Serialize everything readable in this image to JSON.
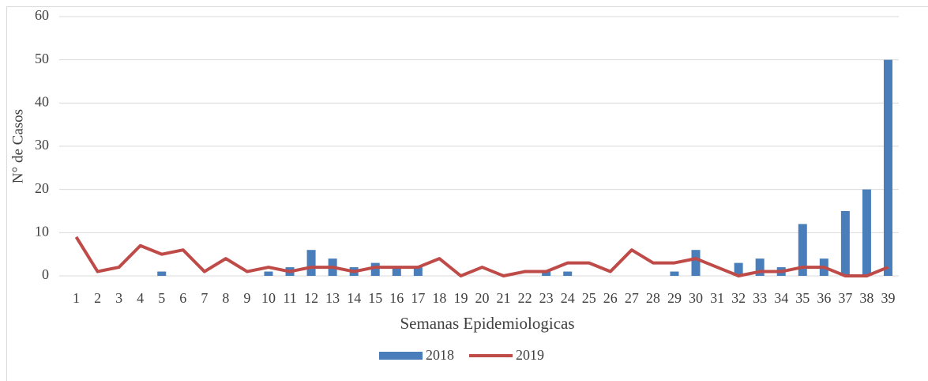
{
  "chart_data": {
    "type": "combo",
    "x_label": "Semanas Epidemiologicas",
    "y_label": "N° de Casos",
    "categories": [
      "1",
      "2",
      "3",
      "4",
      "5",
      "6",
      "7",
      "8",
      "9",
      "10",
      "11",
      "12",
      "13",
      "14",
      "15",
      "16",
      "17",
      "18",
      "19",
      "20",
      "21",
      "22",
      "23",
      "24",
      "25",
      "26",
      "27",
      "28",
      "29",
      "30",
      "31",
      "32",
      "33",
      "34",
      "35",
      "36",
      "37",
      "38",
      "39"
    ],
    "series": [
      {
        "name": "2018",
        "type": "bar",
        "color": "#4a7ebb",
        "values": [
          0,
          0,
          0,
          0,
          1,
          0,
          0,
          0,
          0,
          1,
          2,
          6,
          4,
          2,
          3,
          2,
          2,
          0,
          0,
          0,
          0,
          0,
          1,
          1,
          0,
          0,
          0,
          0,
          1,
          6,
          0,
          3,
          4,
          2,
          12,
          4,
          15,
          20,
          50
        ]
      },
      {
        "name": "2019",
        "type": "line",
        "color": "#be4b48",
        "values": [
          9,
          1,
          2,
          7,
          5,
          6,
          1,
          4,
          1,
          2,
          1,
          2,
          2,
          1,
          2,
          2,
          2,
          4,
          0,
          2,
          0,
          1,
          1,
          3,
          3,
          1,
          6,
          3,
          3,
          4,
          2,
          0,
          1,
          1,
          2,
          2,
          0,
          0,
          2
        ]
      }
    ],
    "ylim": [
      0,
      60
    ],
    "yticks": [
      0,
      10,
      20,
      30,
      40,
      50,
      60
    ],
    "grid": true,
    "legend": "bottom"
  }
}
